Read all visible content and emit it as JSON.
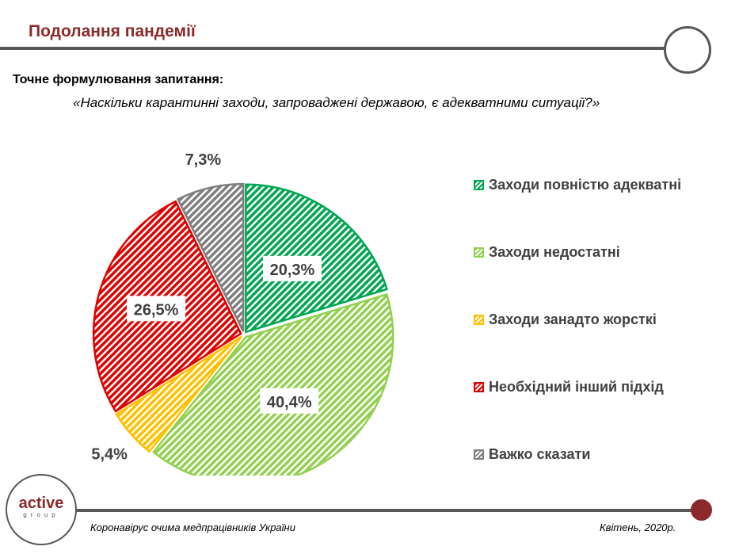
{
  "header": {
    "title": "Подолання пандемії",
    "question_label": "Точне формулювання запитання:",
    "question": "«Наскільки карантинні заходи, запроваджені державою, є адекватними ситуації?»"
  },
  "footer": {
    "left": "Коронавірус очима медпрацівників України",
    "right": "Квітень, 2020р.",
    "logo_main": "active",
    "logo_sub": "group"
  },
  "chart_data": {
    "type": "pie",
    "title": "",
    "categories": [
      "Заходи повністю адекватні",
      "Заходи недостатні",
      "Заходи занадто жорсткі",
      "Необхідний інший підхід",
      "Важко сказати"
    ],
    "values": [
      20.3,
      40.4,
      5.4,
      26.5,
      7.3
    ],
    "labels": [
      "20,3%",
      "40,4%",
      "5,4%",
      "26,5%",
      "7,3%"
    ],
    "colors": [
      "#00a651",
      "#92d050",
      "#ffc000",
      "#e00000",
      "#7f7f7f"
    ],
    "legend_position": "right"
  }
}
